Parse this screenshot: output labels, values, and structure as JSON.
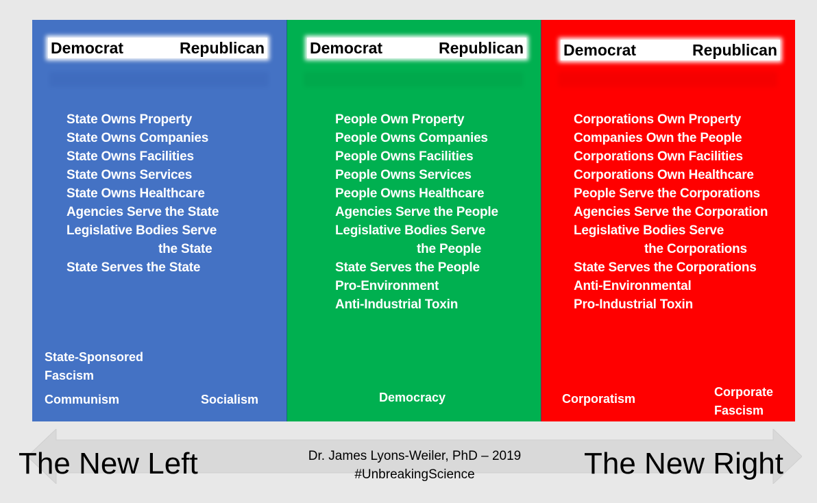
{
  "header": {
    "democrat": "Democrat",
    "republican": "Republican"
  },
  "colors": {
    "left": "#4472c4",
    "middle": "#00b050",
    "right": "#ff0000"
  },
  "left": {
    "items": [
      "State Owns Property",
      "State Owns Companies",
      "State Owns Facilities",
      "State Owns Services",
      "State Owns Healthcare",
      "Agencies Serve the State"
    ],
    "legislative_line1": "Legislative Bodies Serve",
    "legislative_line2": "the State",
    "after": [
      "State Serves the State"
    ],
    "fascism_line1": "State-Sponsored",
    "fascism_line2": "Fascism",
    "communism": "Communism",
    "socialism": "Socialism"
  },
  "middle": {
    "items": [
      "People Own Property",
      "People Owns Companies",
      "People Owns Facilities",
      "People Owns Services",
      "People Owns Healthcare",
      "Agencies Serve the People"
    ],
    "legislative_line1": "Legislative Bodies Serve",
    "legislative_line2": "the People",
    "after": [
      "State Serves the People",
      "Pro-Environment",
      "Anti-Industrial Toxin"
    ],
    "democracy": "Democracy"
  },
  "right": {
    "items": [
      "Corporations Own Property",
      "Companies Own the People",
      "Corporations Own Facilities",
      "Corporations Own Healthcare",
      "People Serve the Corporations",
      "Agencies Serve the Corporation"
    ],
    "legislative_line1": "Legislative Bodies Serve",
    "legislative_line2": "the Corporations",
    "after": [
      "State Serves the Corporations",
      "Anti-Environmental",
      "Pro-Industrial Toxin"
    ],
    "corporatism": "Corporatism",
    "corporate_fascism_line1": "Corporate",
    "corporate_fascism_line2": "Fascism"
  },
  "bottom": {
    "new_left": "The New Left",
    "new_right": "The New Right",
    "credit_line1": "Dr. James Lyons-Weiler, PhD – 2019",
    "credit_line2": "#UnbreakingScience"
  }
}
